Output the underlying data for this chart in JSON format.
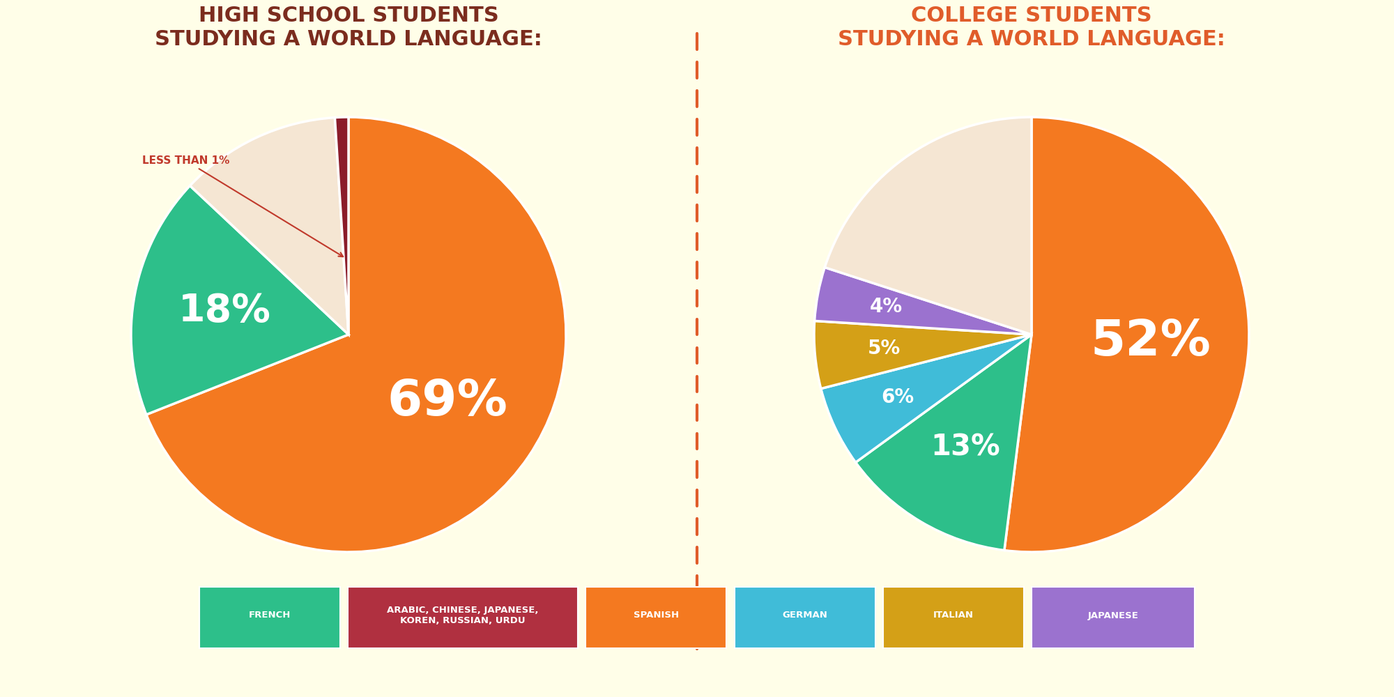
{
  "background_color": "#fffee8",
  "chart_bg": "#ffffff",
  "divider_color": "#e05c2a",
  "left_title": "HIGH SCHOOL STUDENTS\nSTUDYING A WORLD LANGUAGE:",
  "right_title": "COLLEGE STUDENTS\nSTUDYING A WORLD LANGUAGE:",
  "left_title_color": "#7b2c1e",
  "right_title_color": "#e05c2a",
  "hs_slices": [
    69,
    18,
    12,
    1
  ],
  "hs_colors": [
    "#f47920",
    "#2dbf8a",
    "#f5e6d3",
    "#8b1c2a"
  ],
  "col_slices": [
    52,
    13,
    6,
    5,
    4,
    20
  ],
  "col_colors": [
    "#f47920",
    "#2dbf8a",
    "#40bcd8",
    "#d4a017",
    "#9b72cf",
    "#f5e6d3"
  ],
  "annotation_text": "LESS THAN 1%",
  "annotation_color": "#c0392b",
  "legend_items": [
    {
      "label": "FRENCH",
      "color": "#2dbf8a",
      "two_line": false
    },
    {
      "label": "ARABIC, CHINESE, JAPANESE,\nKOREN, RUSSIAN, URDU",
      "color": "#b03040",
      "two_line": true
    },
    {
      "label": "SPANISH",
      "color": "#f47920",
      "two_line": false
    },
    {
      "label": "GERMAN",
      "color": "#40bcd8",
      "two_line": false
    },
    {
      "label": "ITALIAN",
      "color": "#d4a017",
      "two_line": false
    },
    {
      "label": "JAPANESE",
      "color": "#9b72cf",
      "two_line": false
    }
  ]
}
